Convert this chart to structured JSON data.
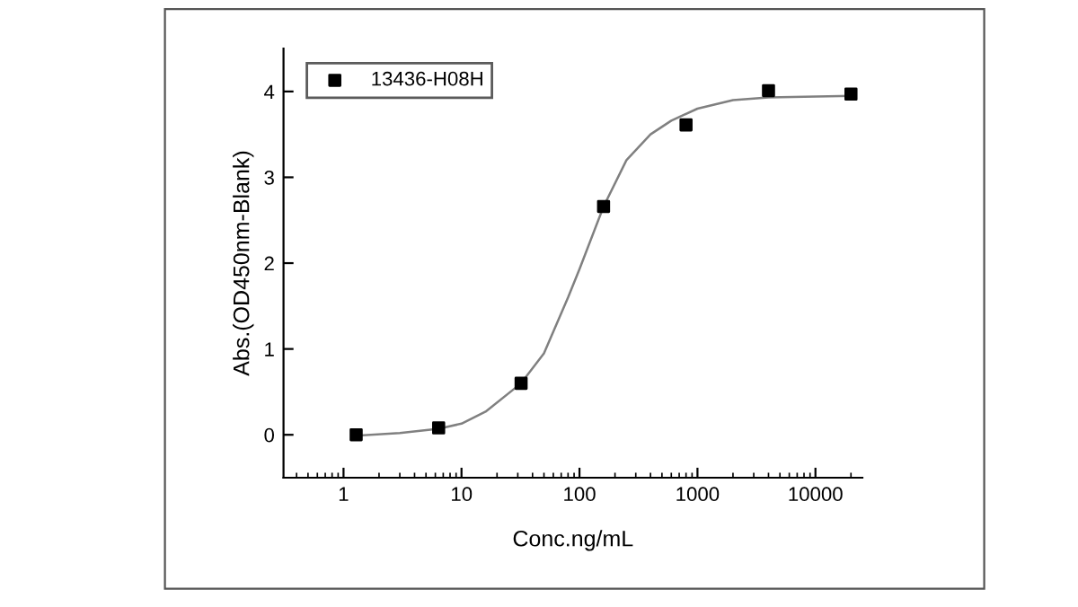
{
  "chart_data": {
    "type": "scatter",
    "xlabel": "Conc.ng/mL",
    "ylabel": "Abs.(OD450nm-Blank)",
    "log": "x",
    "xlim": [
      0.31,
      25000
    ],
    "ylim": [
      -0.5,
      4.5
    ],
    "xticks": [
      1,
      10,
      100,
      1000,
      10000
    ],
    "yticks": [
      0,
      1,
      2,
      3,
      4
    ],
    "legend": "top left",
    "grid": false,
    "series": [
      {
        "name": "13436-H08H",
        "marker": "square",
        "color": "#000000",
        "x": [
          1.28,
          6.4,
          32,
          160,
          800,
          4000,
          20000
        ],
        "values": [
          0.0,
          0.08,
          0.6,
          2.66,
          3.61,
          4.01,
          3.97
        ]
      },
      {
        "type": "line",
        "color": "#808080",
        "line_style": "solid",
        "marker": "none",
        "x": [
          1.28,
          3,
          6.4,
          10,
          16,
          32,
          50,
          80,
          100,
          160,
          250,
          400,
          600,
          1000,
          2000,
          4000,
          20000
        ],
        "values": [
          -0.01,
          0.02,
          0.07,
          0.13,
          0.27,
          0.6,
          0.95,
          1.6,
          1.93,
          2.66,
          3.2,
          3.5,
          3.66,
          3.8,
          3.9,
          3.93,
          3.95
        ]
      }
    ]
  }
}
